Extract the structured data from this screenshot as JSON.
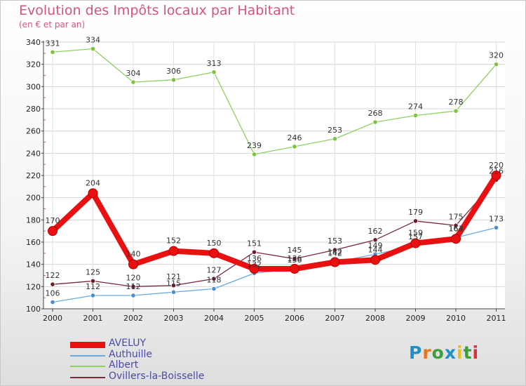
{
  "header": {
    "title": "Evolution des Impôts locaux par Habitant",
    "subtitle": "(en € et par an)"
  },
  "logo": {
    "text": "Proxiti",
    "letter_colors": [
      "#1e90c8",
      "#e8741c",
      "#3aa03a",
      "#1e90c8",
      "#e8c01c",
      "#3aa03a",
      "#d9303a"
    ]
  },
  "chart_data": {
    "type": "line",
    "title": "Evolution des Impôts locaux par Habitant",
    "subtitle": "(en € et par an)",
    "xlabel": "",
    "ylabel": "",
    "ylim": [
      100,
      340
    ],
    "yticks": [
      100,
      120,
      140,
      160,
      180,
      200,
      220,
      240,
      260,
      280,
      300,
      320,
      340
    ],
    "categories": [
      "2000",
      "2001",
      "2002",
      "2003",
      "2004",
      "2005",
      "2006",
      "2007",
      "2008",
      "2009",
      "2010",
      "2011"
    ],
    "grid": true,
    "legend_position": "bottom-left",
    "series": [
      {
        "name": "Albert",
        "color": "#90d060",
        "marker": "#7cc43c",
        "width": 1.3,
        "values": [
          331,
          334,
          304,
          306,
          313,
          239,
          246,
          253,
          268,
          274,
          278,
          320
        ],
        "labels": [
          "331",
          "334",
          "304",
          "306",
          "313",
          "239",
          "246",
          "253",
          "268",
          "274",
          "278",
          "320"
        ]
      },
      {
        "name": "Ovillers-la-Boisselle",
        "color": "#7a2a38",
        "marker": "#6a1e2a",
        "width": 1.3,
        "values": [
          122,
          125,
          120,
          121,
          127,
          151,
          145,
          153,
          162,
          179,
          175,
          216
        ],
        "labels": [
          "122",
          "125",
          "120",
          "121",
          "127",
          "151",
          "145",
          "153",
          "162",
          "179",
          "175",
          "216"
        ]
      },
      {
        "name": "Authuille",
        "color": "#6aaadc",
        "marker": "#4a8ed0",
        "width": 1.3,
        "values": [
          106,
          112,
          112,
          115,
          118,
          132,
          136,
          142,
          149,
          157,
          164,
          173
        ],
        "labels": [
          "106",
          "112",
          "112",
          "115",
          "118",
          "132",
          "136",
          "142",
          "149",
          "157",
          "164",
          "173"
        ]
      },
      {
        "name": "AVELUY",
        "color": "#e81010",
        "marker": "#e81010",
        "width": 8,
        "values": [
          170,
          204,
          140,
          152,
          150,
          136,
          136,
          142,
          144,
          159,
          163,
          220
        ],
        "labels": [
          "170",
          "204",
          "140",
          "152",
          "150",
          "136",
          "136",
          "142",
          "144",
          "159",
          "163",
          "220"
        ]
      }
    ],
    "legend_order": [
      "AVELUY",
      "Authuille",
      "Albert",
      "Ovillers-la-Boisselle"
    ]
  }
}
